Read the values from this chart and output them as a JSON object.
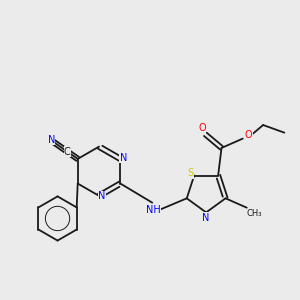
{
  "background_color": "#ebebeb",
  "bond_color": "#1a1a1a",
  "atom_colors": {
    "N": "#0000ff",
    "O": "#ff0000",
    "S": "#cccc00",
    "C": "#1a1a1a",
    "H": "#1a1a1a"
  },
  "figsize": [
    3.0,
    3.0
  ],
  "dpi": 100
}
